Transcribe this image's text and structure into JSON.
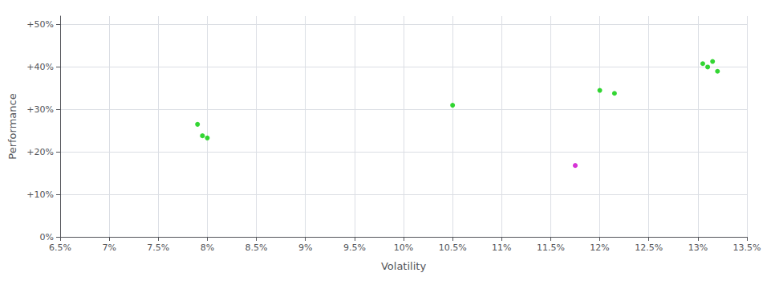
{
  "chart_data": {
    "type": "scatter",
    "xlabel": "Volatility",
    "ylabel": "Performance",
    "xlim": [
      0.065,
      0.135
    ],
    "ylim": [
      0.0,
      0.52
    ],
    "xticks": [
      {
        "value": 0.065,
        "label": "6.5%"
      },
      {
        "value": 0.07,
        "label": "7%"
      },
      {
        "value": 0.075,
        "label": "7.5%"
      },
      {
        "value": 0.08,
        "label": "8%"
      },
      {
        "value": 0.085,
        "label": "8.5%"
      },
      {
        "value": 0.09,
        "label": "9%"
      },
      {
        "value": 0.095,
        "label": "9.5%"
      },
      {
        "value": 0.1,
        "label": "10%"
      },
      {
        "value": 0.105,
        "label": "10.5%"
      },
      {
        "value": 0.11,
        "label": "11%"
      },
      {
        "value": 0.115,
        "label": "11.5%"
      },
      {
        "value": 0.12,
        "label": "12%"
      },
      {
        "value": 0.125,
        "label": "12.5%"
      },
      {
        "value": 0.13,
        "label": "13%"
      },
      {
        "value": 0.135,
        "label": "13.5%"
      }
    ],
    "yticks": [
      {
        "value": 0.0,
        "label": "0%"
      },
      {
        "value": 0.1,
        "label": "+10%"
      },
      {
        "value": 0.2,
        "label": "+20%"
      },
      {
        "value": 0.3,
        "label": "+30%"
      },
      {
        "value": 0.4,
        "label": "+40%"
      },
      {
        "value": 0.5,
        "label": "+50%"
      }
    ],
    "grid": true,
    "series": [
      {
        "color": "#00cc00",
        "x": [
          0.079,
          0.0795,
          0.08,
          0.105,
          0.12,
          0.1215,
          0.1305,
          0.131,
          0.1315,
          0.132
        ],
        "values": [
          0.265,
          0.238,
          0.233,
          0.31,
          0.345,
          0.338,
          0.408,
          0.4,
          0.413,
          0.39
        ]
      },
      {
        "color": "#cc00cc",
        "x": [
          0.1175
        ],
        "values": [
          0.168
        ]
      }
    ]
  }
}
